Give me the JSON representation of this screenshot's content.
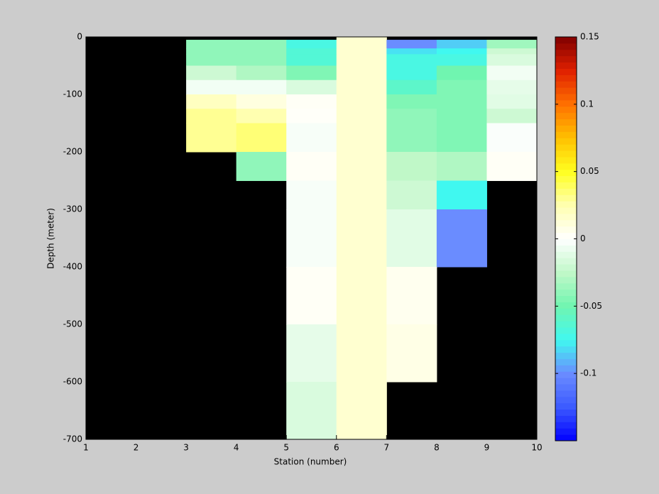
{
  "chart_data": {
    "type": "heatmap",
    "xlabel": "Station (number)",
    "ylabel": "Depth (meter)",
    "x_edges": [
      1,
      2,
      3,
      4,
      5,
      6,
      7,
      8,
      9,
      10
    ],
    "y_edges": [
      0,
      -5,
      -20,
      -30,
      -50,
      -75,
      -100,
      -125,
      -150,
      -200,
      -250,
      -300,
      -400,
      -500,
      -600,
      -700
    ],
    "values": [
      [
        null,
        null,
        null,
        null,
        null,
        0.015,
        null,
        null,
        null
      ],
      [
        null,
        null,
        -0.04,
        -0.04,
        -0.07,
        0.015,
        -0.1,
        -0.085,
        -0.035
      ],
      [
        null,
        null,
        -0.04,
        -0.04,
        -0.065,
        0.015,
        -0.08,
        -0.075,
        -0.02
      ],
      [
        null,
        null,
        -0.04,
        -0.04,
        -0.065,
        0.015,
        -0.07,
        -0.07,
        -0.015
      ],
      [
        null,
        null,
        -0.02,
        -0.03,
        -0.045,
        0.015,
        -0.07,
        -0.05,
        -0.005
      ],
      [
        null,
        null,
        -0.005,
        -0.005,
        -0.015,
        0.015,
        -0.06,
        -0.045,
        -0.01
      ],
      [
        null,
        null,
        0.02,
        0.01,
        0.003,
        0.015,
        -0.045,
        -0.045,
        -0.012
      ],
      [
        null,
        null,
        0.03,
        0.025,
        0.002,
        0.015,
        -0.04,
        -0.045,
        -0.02
      ],
      [
        null,
        null,
        0.03,
        0.035,
        -0.003,
        0.015,
        -0.04,
        -0.045,
        -0.002
      ],
      [
        null,
        null,
        null,
        -0.04,
        0.003,
        0.015,
        -0.025,
        -0.03,
        0.003
      ],
      [
        null,
        null,
        null,
        null,
        -0.003,
        0.015,
        -0.02,
        -0.075,
        null
      ],
      [
        null,
        null,
        null,
        null,
        -0.003,
        0.015,
        -0.012,
        -0.1,
        null
      ],
      [
        null,
        null,
        null,
        null,
        0.003,
        0.015,
        0.005,
        null,
        null
      ],
      [
        null,
        null,
        null,
        null,
        -0.01,
        0.015,
        0.008,
        null,
        null
      ],
      [
        null,
        null,
        null,
        null,
        -0.015,
        0.015,
        null,
        null,
        null
      ]
    ],
    "xlim": [
      1,
      10
    ],
    "xticks": [
      1,
      2,
      3,
      4,
      5,
      6,
      7,
      8,
      9,
      10
    ],
    "ylim": [
      -700,
      0
    ],
    "yticks": [
      0,
      -100,
      -200,
      -300,
      -400,
      -500,
      -600,
      -700
    ],
    "clim": [
      -0.15,
      0.15
    ],
    "cticks": [
      0.15,
      0.1,
      0.05,
      0,
      -0.05,
      -0.1
    ],
    "missing_color": "#000000",
    "colormap": [
      "#0000ff",
      "#3c5aff",
      "#6a8cff",
      "#40f8f0",
      "#70f5b0",
      "#c0f8c8",
      "#ffffff",
      "#ffffb0",
      "#ffff20",
      "#ffc000",
      "#ff7000",
      "#e02000",
      "#800000"
    ]
  }
}
